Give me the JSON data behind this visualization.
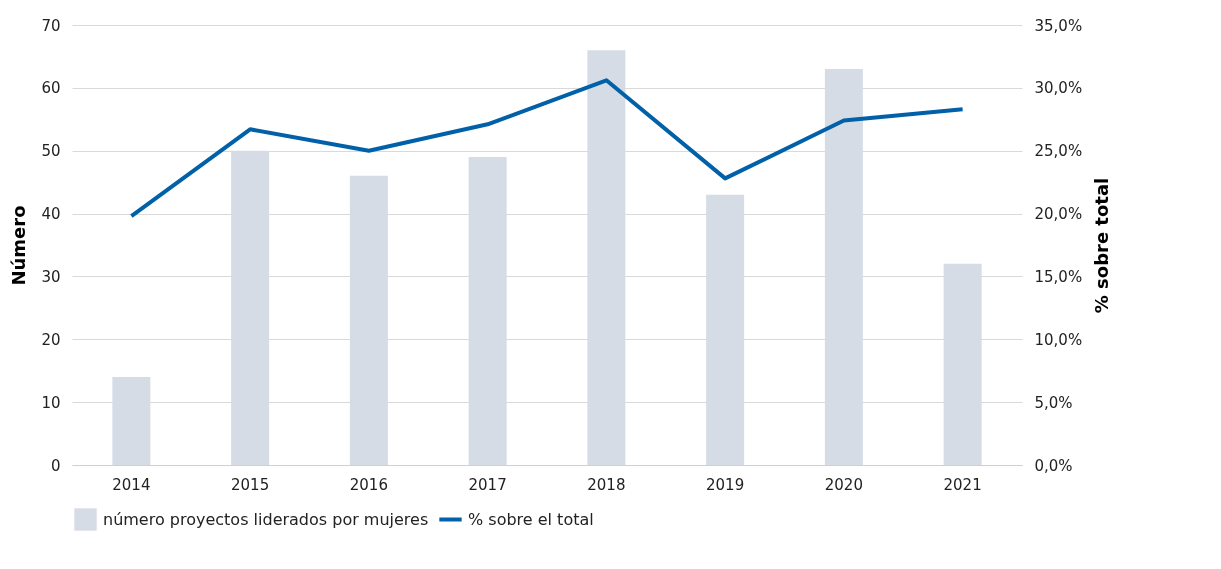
{
  "chart_data": {
    "type": "bar",
    "ylabel": "Número",
    "y2label": "% sobre total",
    "categories": [
      "2014",
      "2015",
      "2016",
      "2017",
      "2018",
      "2019",
      "2020",
      "2021"
    ],
    "series": [
      {
        "name": "número proyectos liderados por mujeres",
        "color": "#d6dce5",
        "values": [
          14,
          50,
          46,
          49,
          66,
          43,
          63,
          32
        ]
      },
      {
        "name": "% sobre el total",
        "color": "#0060a8",
        "type": "line",
        "axis": "y2",
        "values": [
          19.8,
          26.7,
          25.0,
          27.1,
          30.6,
          22.8,
          27.4,
          28.3
        ]
      }
    ],
    "ylim": [
      0,
      70
    ],
    "yticks": [
      0,
      10,
      20,
      30,
      40,
      50,
      60,
      70
    ],
    "y2lim": [
      0,
      35
    ],
    "y2ticks": [
      {
        "value": 0,
        "label": "0,0%"
      },
      {
        "value": 5,
        "label": "5,0%"
      },
      {
        "value": 10,
        "label": "10,0%"
      },
      {
        "value": 15,
        "label": "15,0%"
      },
      {
        "value": 20,
        "label": "20,0%"
      },
      {
        "value": 25,
        "label": "25,0%"
      },
      {
        "value": 30,
        "label": "30,0%"
      },
      {
        "value": 35,
        "label": "35,0%"
      }
    ],
    "grid": "y",
    "legend": "bottom",
    "line_style": "solid",
    "marker": "none"
  }
}
